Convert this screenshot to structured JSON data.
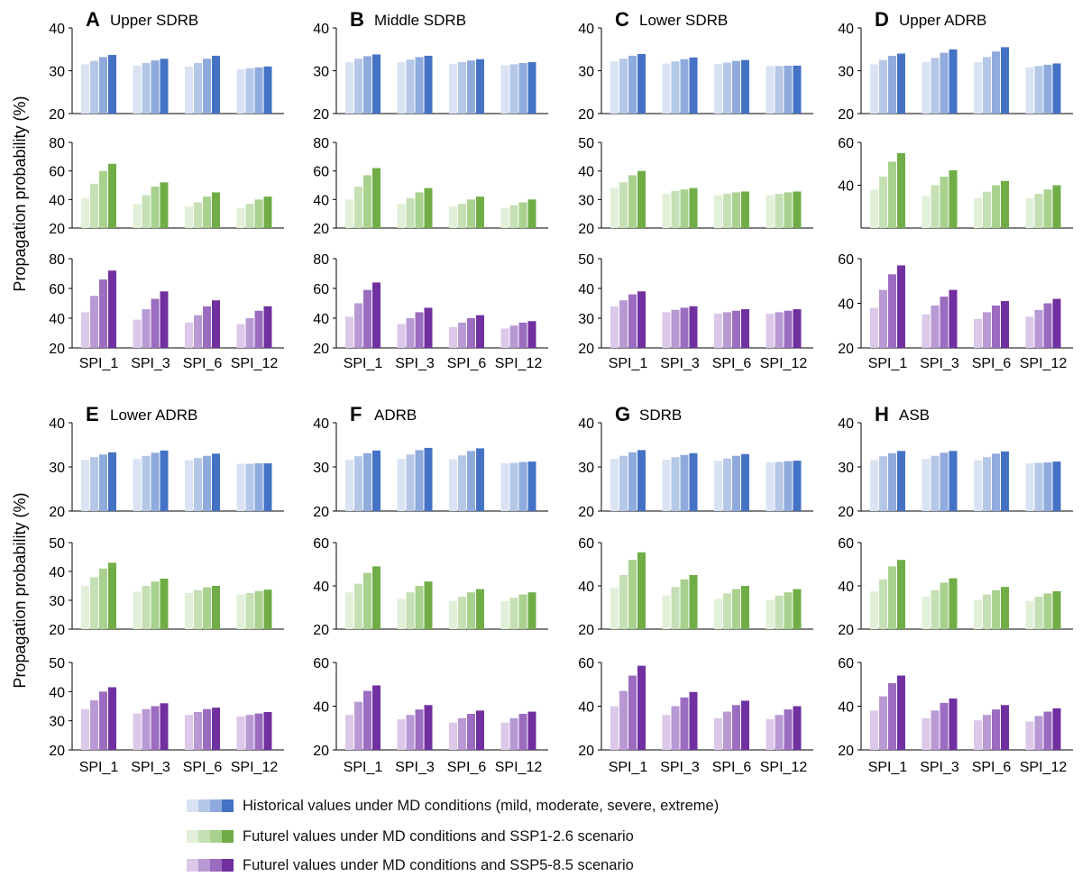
{
  "chart_data": {
    "type": "bar",
    "ylabel": "Propagation probability (%)",
    "categories": [
      "SPI_1",
      "SPI_3",
      "SPI_6",
      "SPI_12"
    ],
    "colors": {
      "historical": [
        "#dae3f3",
        "#b4c7e7",
        "#8faadc",
        "#4472c4"
      ],
      "ssp126": [
        "#e2f0d9",
        "#c5e0b4",
        "#a9d18e",
        "#70ad47"
      ],
      "ssp585": [
        "#dcc8e8",
        "#b999d4",
        "#9b6cc0",
        "#7030a0"
      ]
    },
    "legend": [
      {
        "key": "historical",
        "label": "Historical values under MD conditions (mild, moderate, severe, extreme)"
      },
      {
        "key": "ssp126",
        "label": "Futurel values under MD conditions and SSP1-2.6 scenario"
      },
      {
        "key": "ssp585",
        "label": "Futurel values under MD conditions and SSP5-8.5 scenario"
      }
    ],
    "panels": [
      {
        "letter": "A",
        "title": "Upper SDRB",
        "subplots": [
          {
            "key": "historical",
            "ylim": [
              20,
              40
            ],
            "ticks": [
              20,
              30,
              40
            ],
            "values": [
              [
                31.5,
                32.3,
                33.2,
                33.7
              ],
              [
                31.2,
                31.8,
                32.4,
                32.8
              ],
              [
                31.0,
                31.8,
                32.8,
                33.5
              ],
              [
                30.4,
                30.6,
                30.8,
                31.0
              ]
            ]
          },
          {
            "key": "ssp126",
            "ylim": [
              20,
              80
            ],
            "ticks": [
              20,
              40,
              60,
              80
            ],
            "values": [
              [
                41,
                51,
                60,
                65
              ],
              [
                37,
                43,
                49,
                52
              ],
              [
                35,
                38,
                42,
                45
              ],
              [
                34,
                37,
                40,
                42
              ]
            ]
          },
          {
            "key": "ssp585",
            "ylim": [
              20,
              80
            ],
            "ticks": [
              20,
              40,
              60,
              80
            ],
            "values": [
              [
                44,
                55,
                66,
                72
              ],
              [
                39,
                46,
                53,
                58
              ],
              [
                37,
                42,
                48,
                52
              ],
              [
                36,
                40,
                45,
                48
              ]
            ]
          }
        ]
      },
      {
        "letter": "B",
        "title": "Middle SDRB",
        "subplots": [
          {
            "key": "historical",
            "ylim": [
              20,
              40
            ],
            "ticks": [
              20,
              30,
              40
            ],
            "values": [
              [
                32.0,
                32.8,
                33.4,
                33.8
              ],
              [
                32.0,
                32.6,
                33.2,
                33.5
              ],
              [
                31.6,
                32.0,
                32.4,
                32.7
              ],
              [
                31.3,
                31.5,
                31.8,
                32.0
              ]
            ]
          },
          {
            "key": "ssp126",
            "ylim": [
              20,
              80
            ],
            "ticks": [
              20,
              40,
              60,
              80
            ],
            "values": [
              [
                40,
                49,
                57,
                62
              ],
              [
                37,
                41,
                45,
                48
              ],
              [
                35,
                37,
                40,
                42
              ],
              [
                34,
                36,
                38,
                40
              ]
            ]
          },
          {
            "key": "ssp585",
            "ylim": [
              20,
              80
            ],
            "ticks": [
              20,
              40,
              60,
              80
            ],
            "values": [
              [
                41,
                50,
                59,
                64
              ],
              [
                36,
                40,
                44,
                47
              ],
              [
                34,
                37,
                40,
                42
              ],
              [
                33,
                35,
                37,
                38
              ]
            ]
          }
        ]
      },
      {
        "letter": "C",
        "title": "Lower SDRB",
        "subplots": [
          {
            "key": "historical",
            "ylim": [
              20,
              40
            ],
            "ticks": [
              20,
              30,
              40
            ],
            "values": [
              [
                32.2,
                32.8,
                33.5,
                33.9
              ],
              [
                31.7,
                32.2,
                32.7,
                33.1
              ],
              [
                31.6,
                31.9,
                32.3,
                32.5
              ],
              [
                31.1,
                31.1,
                31.2,
                31.2
              ]
            ]
          },
          {
            "key": "ssp126",
            "ylim": [
              20,
              50
            ],
            "ticks": [
              20,
              30,
              40,
              50
            ],
            "values": [
              [
                34,
                36,
                38.5,
                40
              ],
              [
                32,
                33,
                33.5,
                34
              ],
              [
                31.5,
                32,
                32.5,
                32.8
              ],
              [
                31.5,
                32,
                32.5,
                32.8
              ]
            ]
          },
          {
            "key": "ssp585",
            "ylim": [
              20,
              50
            ],
            "ticks": [
              20,
              30,
              40,
              50
            ],
            "values": [
              [
                34,
                36,
                38,
                39
              ],
              [
                32,
                32.8,
                33.5,
                34
              ],
              [
                31.5,
                32,
                32.5,
                33
              ],
              [
                31.5,
                32,
                32.5,
                33
              ]
            ]
          }
        ]
      },
      {
        "letter": "D",
        "title": "Upper ADRB",
        "subplots": [
          {
            "key": "historical",
            "ylim": [
              20,
              40
            ],
            "ticks": [
              20,
              30,
              40
            ],
            "values": [
              [
                31.5,
                32.5,
                33.5,
                34.0
              ],
              [
                32.0,
                33.0,
                34.2,
                35.0
              ],
              [
                32.0,
                33.2,
                34.5,
                35.5
              ],
              [
                30.8,
                31.1,
                31.4,
                31.7
              ]
            ]
          },
          {
            "key": "ssp126",
            "ylim": [
              20,
              60
            ],
            "ticks": [
              40,
              60
            ],
            "values": [
              [
                38,
                44,
                51,
                55
              ],
              [
                35,
                40,
                44,
                47
              ],
              [
                34,
                37,
                40,
                42
              ],
              [
                34,
                36,
                38,
                40
              ]
            ]
          },
          {
            "key": "ssp585",
            "ylim": [
              20,
              60
            ],
            "ticks": [
              20,
              40,
              60
            ],
            "values": [
              [
                38,
                46,
                53,
                57
              ],
              [
                35,
                39,
                43,
                46
              ],
              [
                33,
                36,
                39,
                41
              ],
              [
                34,
                37,
                40,
                42
              ]
            ]
          }
        ]
      },
      {
        "letter": "E",
        "title": "Lower ADRB",
        "subplots": [
          {
            "key": "historical",
            "ylim": [
              20,
              40
            ],
            "ticks": [
              20,
              30,
              40
            ],
            "values": [
              [
                31.6,
                32.2,
                32.8,
                33.3
              ],
              [
                31.8,
                32.5,
                33.2,
                33.7
              ],
              [
                31.5,
                32.0,
                32.5,
                33.0
              ],
              [
                30.7,
                30.7,
                30.8,
                30.8
              ]
            ]
          },
          {
            "key": "ssp126",
            "ylim": [
              20,
              50
            ],
            "ticks": [
              20,
              30,
              40,
              50
            ],
            "values": [
              [
                35,
                38,
                41,
                43
              ],
              [
                33,
                35,
                36.5,
                37.5
              ],
              [
                32.5,
                33.5,
                34.5,
                35
              ],
              [
                32,
                32.5,
                33.2,
                33.7
              ]
            ]
          },
          {
            "key": "ssp585",
            "ylim": [
              20,
              50
            ],
            "ticks": [
              20,
              30,
              40,
              50
            ],
            "values": [
              [
                34,
                37,
                40,
                41.5
              ],
              [
                32.5,
                34,
                35,
                36
              ],
              [
                32,
                33,
                34,
                34.5
              ],
              [
                31.5,
                32,
                32.5,
                33
              ]
            ]
          }
        ]
      },
      {
        "letter": "F",
        "title": "ADRB",
        "subplots": [
          {
            "key": "historical",
            "ylim": [
              20,
              40
            ],
            "ticks": [
              20,
              30,
              40
            ],
            "values": [
              [
                31.6,
                32.4,
                33.1,
                33.7
              ],
              [
                31.8,
                32.8,
                33.8,
                34.3
              ],
              [
                31.7,
                32.6,
                33.6,
                34.2
              ],
              [
                30.8,
                30.9,
                31.1,
                31.2
              ]
            ]
          },
          {
            "key": "ssp126",
            "ylim": [
              20,
              60
            ],
            "ticks": [
              20,
              40,
              60
            ],
            "values": [
              [
                37,
                41,
                46,
                49
              ],
              [
                34,
                37,
                40,
                42
              ],
              [
                33,
                35,
                37,
                38.5
              ],
              [
                33,
                34.5,
                36,
                37
              ]
            ]
          },
          {
            "key": "ssp585",
            "ylim": [
              20,
              60
            ],
            "ticks": [
              20,
              40,
              60
            ],
            "values": [
              [
                36,
                42,
                47,
                49.5
              ],
              [
                34,
                36,
                38.5,
                40.5
              ],
              [
                32.5,
                34.5,
                36.5,
                38
              ],
              [
                32.5,
                34.5,
                36.5,
                37.5
              ]
            ]
          }
        ]
      },
      {
        "letter": "G",
        "title": "SDRB",
        "subplots": [
          {
            "key": "historical",
            "ylim": [
              20,
              40
            ],
            "ticks": [
              20,
              30,
              40
            ],
            "values": [
              [
                31.8,
                32.5,
                33.3,
                33.8
              ],
              [
                31.6,
                32.2,
                32.7,
                33.1
              ],
              [
                31.4,
                31.9,
                32.5,
                32.9
              ],
              [
                31.0,
                31.1,
                31.3,
                31.4
              ]
            ]
          },
          {
            "key": "ssp126",
            "ylim": [
              20,
              60
            ],
            "ticks": [
              20,
              40,
              60
            ],
            "values": [
              [
                39,
                45,
                52,
                55.5
              ],
              [
                35.5,
                39.5,
                43,
                45
              ],
              [
                34,
                36.5,
                38.5,
                40
              ],
              [
                33.5,
                35.5,
                37,
                38.5
              ]
            ]
          },
          {
            "key": "ssp585",
            "ylim": [
              20,
              60
            ],
            "ticks": [
              20,
              40,
              60
            ],
            "values": [
              [
                40,
                47,
                54,
                58.5
              ],
              [
                36,
                40,
                44,
                46.5
              ],
              [
                34.5,
                37.5,
                40.5,
                42.5
              ],
              [
                34,
                36,
                38.5,
                40
              ]
            ]
          }
        ]
      },
      {
        "letter": "H",
        "title": "ASB",
        "subplots": [
          {
            "key": "historical",
            "ylim": [
              20,
              40
            ],
            "ticks": [
              20,
              30,
              40
            ],
            "values": [
              [
                31.6,
                32.4,
                33.1,
                33.6
              ],
              [
                31.8,
                32.5,
                33.2,
                33.6
              ],
              [
                31.5,
                32.2,
                33.0,
                33.5
              ],
              [
                30.8,
                30.9,
                31.0,
                31.2
              ]
            ]
          },
          {
            "key": "ssp126",
            "ylim": [
              20,
              60
            ],
            "ticks": [
              20,
              40,
              60
            ],
            "values": [
              [
                37.5,
                43,
                49,
                52
              ],
              [
                35,
                38,
                41.5,
                43.5
              ],
              [
                33.5,
                36,
                38,
                39.5
              ],
              [
                33,
                35,
                36.5,
                37.5
              ]
            ]
          },
          {
            "key": "ssp585",
            "ylim": [
              20,
              60
            ],
            "ticks": [
              20,
              40,
              60
            ],
            "values": [
              [
                38,
                44.5,
                50.5,
                54
              ],
              [
                34.5,
                38,
                41.5,
                43.5
              ],
              [
                33.5,
                36,
                38.5,
                40.5
              ],
              [
                33,
                35.5,
                37.5,
                39
              ]
            ]
          }
        ]
      }
    ]
  }
}
